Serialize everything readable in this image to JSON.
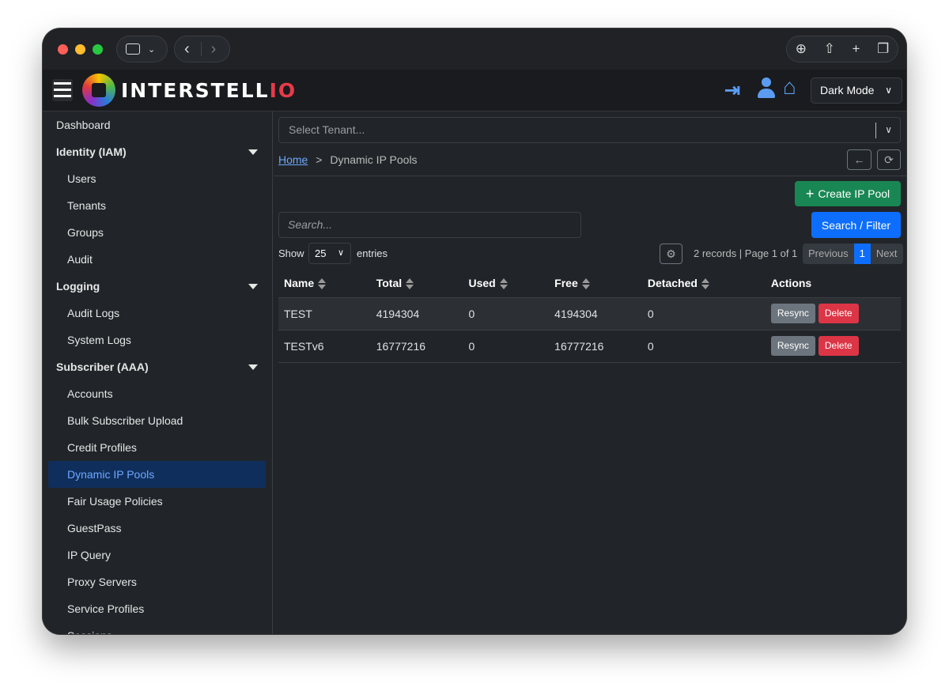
{
  "brand": {
    "name_main": "INTERSTELL",
    "name_accent": "IO"
  },
  "header": {
    "theme_select": "Dark Mode"
  },
  "sidebar": {
    "items": [
      {
        "label": "Dashboard",
        "type": "top"
      },
      {
        "label": "Identity (IAM)",
        "type": "head"
      },
      {
        "label": "Users",
        "type": "sub"
      },
      {
        "label": "Tenants",
        "type": "sub"
      },
      {
        "label": "Groups",
        "type": "sub"
      },
      {
        "label": "Audit",
        "type": "sub"
      },
      {
        "label": "Logging",
        "type": "head"
      },
      {
        "label": "Audit Logs",
        "type": "sub"
      },
      {
        "label": "System Logs",
        "type": "sub"
      },
      {
        "label": "Subscriber (AAA)",
        "type": "head"
      },
      {
        "label": "Accounts",
        "type": "sub"
      },
      {
        "label": "Bulk Subscriber Upload",
        "type": "sub"
      },
      {
        "label": "Credit Profiles",
        "type": "sub"
      },
      {
        "label": "Dynamic IP Pools",
        "type": "active"
      },
      {
        "label": "Fair Usage Policies",
        "type": "sub"
      },
      {
        "label": "GuestPass",
        "type": "sub"
      },
      {
        "label": "IP Query",
        "type": "sub"
      },
      {
        "label": "Proxy Servers",
        "type": "sub"
      },
      {
        "label": "Service Profiles",
        "type": "sub"
      },
      {
        "label": "Sessions",
        "type": "sub"
      }
    ]
  },
  "main": {
    "tenant_placeholder": "Select Tenant...",
    "breadcrumb": {
      "home": "Home",
      "sep": ">",
      "current": "Dynamic IP Pools"
    },
    "create_label": "Create IP Pool",
    "search_placeholder": "Search...",
    "search_filter_label": "Search / Filter",
    "show_label": "Show",
    "entries_value": "25",
    "entries_label": "entries",
    "records_info": "2 records | Page 1 of 1",
    "pagination": {
      "prev": "Previous",
      "page": "1",
      "next": "Next"
    },
    "columns": [
      "Name",
      "Total",
      "Used",
      "Free",
      "Detached",
      "Actions"
    ],
    "rows": [
      {
        "name": "TEST",
        "total": "4194304",
        "used": "0",
        "free": "4194304",
        "detached": "0"
      },
      {
        "name": "TESTv6",
        "total": "16777216",
        "used": "0",
        "free": "16777216",
        "detached": "0"
      }
    ],
    "resync_label": "Resync",
    "delete_label": "Delete"
  },
  "colors": {
    "accent": "#0d6efd",
    "success": "#198754",
    "danger": "#dc3545",
    "link": "#6ea8fe"
  }
}
